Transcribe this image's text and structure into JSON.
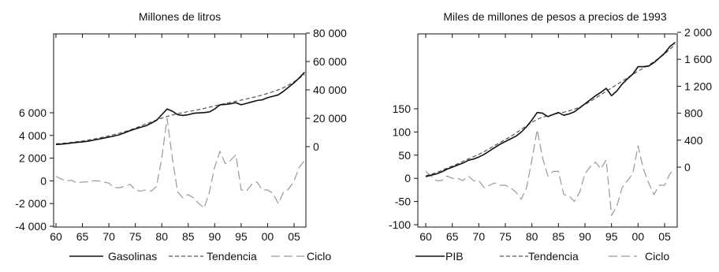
{
  "chart_data": [
    {
      "type": "line",
      "title": "Millones de litros",
      "x": [
        1960,
        1961,
        1962,
        1963,
        1964,
        1965,
        1966,
        1967,
        1968,
        1969,
        1970,
        1971,
        1972,
        1973,
        1974,
        1975,
        1976,
        1977,
        1978,
        1979,
        1980,
        1981,
        1982,
        1983,
        1984,
        1985,
        1986,
        1987,
        1988,
        1989,
        1990,
        1991,
        1992,
        1993,
        1994,
        1995,
        1996,
        1997,
        1998,
        1999,
        2000,
        2001,
        2002,
        2003,
        2004,
        2005,
        2006,
        2007
      ],
      "x_ticks": [
        {
          "value": 1960,
          "label": "60"
        },
        {
          "value": 1965,
          "label": "65"
        },
        {
          "value": 1970,
          "label": "70"
        },
        {
          "value": 1975,
          "label": "75"
        },
        {
          "value": 1980,
          "label": "80"
        },
        {
          "value": 1985,
          "label": "85"
        },
        {
          "value": 1990,
          "label": "90"
        },
        {
          "value": 1995,
          "label": "95"
        },
        {
          "value": 2000,
          "label": "00"
        },
        {
          "value": 2005,
          "label": "05"
        }
      ],
      "xlim": [
        1960,
        2008
      ],
      "left_axis": {
        "ylim": [
          -4000,
          14470
        ],
        "ticks": [
          {
            "value": -4000,
            "label": "-4 000"
          },
          {
            "value": -2000,
            "label": "-2 000"
          },
          {
            "value": 0,
            "label": "0"
          },
          {
            "value": 2000,
            "label": "2 000"
          },
          {
            "value": 4000,
            "label": "4 000"
          },
          {
            "value": 6000,
            "label": "6 000"
          }
        ]
      },
      "right_axis": {
        "ylim": [
          -23680,
          80000
        ],
        "ticks": [
          {
            "value": 0,
            "label": "0"
          },
          {
            "value": 20000,
            "label": "20 000"
          },
          {
            "value": 40000,
            "label": "40 000"
          },
          {
            "value": 60000,
            "label": "60 000"
          },
          {
            "value": 80000,
            "label": "80 000"
          }
        ]
      },
      "series": [
        {
          "name": "Gasolinas",
          "axis": "right",
          "style": "solid",
          "color": "#111111",
          "values": [
            1500,
            1800,
            2100,
            2600,
            3000,
            3400,
            3800,
            4500,
            5200,
            6000,
            6700,
            7500,
            8400,
            9800,
            11200,
            12500,
            13600,
            14700,
            16500,
            18500,
            22500,
            26500,
            25000,
            22500,
            22000,
            22500,
            23500,
            23800,
            24000,
            24500,
            26500,
            29500,
            29800,
            30200,
            31000,
            29500,
            30500,
            31500,
            32500,
            33000,
            34500,
            35500,
            36500,
            39000,
            42000,
            45000,
            48500,
            52500
          ]
        },
        {
          "name": "Tendencia",
          "axis": "right",
          "style": "dash",
          "color": "#555555",
          "values": [
            2000,
            2300,
            2600,
            3000,
            3500,
            4000,
            4600,
            5300,
            6000,
            6800,
            7600,
            8500,
            9500,
            10600,
            11800,
            13100,
            14500,
            16000,
            17400,
            18800,
            20100,
            21300,
            22300,
            23200,
            24000,
            24700,
            25400,
            26100,
            26900,
            27800,
            28700,
            29600,
            30400,
            31200,
            32000,
            32800,
            33600,
            34500,
            35400,
            36400,
            37500,
            38700,
            40000,
            41500,
            43500,
            45700,
            48200,
            51000
          ]
        },
        {
          "name": "Ciclo",
          "axis": "left",
          "style": "longdash",
          "color": "#999999",
          "values": [
            400,
            150,
            0,
            50,
            -200,
            -100,
            -100,
            0,
            0,
            -100,
            -200,
            -600,
            -600,
            -500,
            -300,
            -800,
            -900,
            -800,
            -900,
            -500,
            2000,
            5500,
            2000,
            -1000,
            -1500,
            -1200,
            -1500,
            -2000,
            -2400,
            -1000,
            1200,
            2600,
            1500,
            1800,
            2300,
            -800,
            -900,
            -300,
            -100,
            -800,
            -800,
            -1100,
            -2000,
            -1000,
            -700,
            0,
            1200,
            1800
          ]
        }
      ],
      "legend": {
        "placement": "bottom",
        "items": [
          "Gasolinas",
          "Tendencia",
          "Ciclo"
        ]
      }
    },
    {
      "type": "line",
      "title": "Miles de millones de pesos a precios de 1993",
      "x": [
        1960,
        1961,
        1962,
        1963,
        1964,
        1965,
        1966,
        1967,
        1968,
        1969,
        1970,
        1971,
        1972,
        1973,
        1974,
        1975,
        1976,
        1977,
        1978,
        1979,
        1980,
        1981,
        1982,
        1983,
        1984,
        1985,
        1986,
        1987,
        1988,
        1989,
        1990,
        1991,
        1992,
        1993,
        1994,
        1995,
        1996,
        1997,
        1998,
        1999,
        2000,
        2001,
        2002,
        2003,
        2004,
        2005,
        2006,
        2007
      ],
      "x_ticks": [
        {
          "value": 1960,
          "label": "60"
        },
        {
          "value": 1965,
          "label": "65"
        },
        {
          "value": 1970,
          "label": "70"
        },
        {
          "value": 1975,
          "label": "75"
        },
        {
          "value": 1980,
          "label": "80"
        },
        {
          "value": 1985,
          "label": "85"
        },
        {
          "value": 1990,
          "label": "90"
        },
        {
          "value": 1995,
          "label": "95"
        },
        {
          "value": 2000,
          "label": "00"
        },
        {
          "value": 2005,
          "label": "05"
        }
      ],
      "xlim": [
        1960,
        2008
      ],
      "left_axis": {
        "ylim": [
          -100,
          235
        ],
        "ticks": [
          {
            "value": -100,
            "label": "-100"
          },
          {
            "value": -50,
            "label": "-50"
          },
          {
            "value": 0,
            "label": "0"
          },
          {
            "value": 50,
            "label": "50"
          },
          {
            "value": 100,
            "label": "100"
          },
          {
            "value": 150,
            "label": "150"
          }
        ]
      },
      "right_axis": {
        "ylim": [
          -640,
          2000
        ],
        "ticks": [
          {
            "value": 0,
            "label": "0"
          },
          {
            "value": 400,
            "label": "400"
          },
          {
            "value": 800,
            "label": "800"
          },
          {
            "value": 1200,
            "label": "1 200"
          },
          {
            "value": 1600,
            "label": "1 600"
          },
          {
            "value": 2000,
            "label": "2 000"
          }
        ]
      },
      "series": [
        {
          "name": "PIB",
          "axis": "right",
          "style": "solid",
          "color": "#111111",
          "values": [
            -140,
            -120,
            -100,
            -70,
            -30,
            0,
            30,
            60,
            100,
            120,
            150,
            190,
            240,
            290,
            340,
            380,
            420,
            460,
            520,
            600,
            700,
            810,
            800,
            750,
            780,
            810,
            770,
            790,
            820,
            880,
            940,
            1000,
            1060,
            1110,
            1170,
            1060,
            1130,
            1230,
            1310,
            1380,
            1490,
            1490,
            1500,
            1550,
            1620,
            1690,
            1790,
            1850
          ]
        },
        {
          "name": "Tendencia",
          "axis": "right",
          "style": "dash",
          "color": "#555555",
          "values": [
            -130,
            -105,
            -80,
            -50,
            -15,
            15,
            50,
            85,
            120,
            155,
            190,
            230,
            275,
            320,
            365,
            410,
            455,
            505,
            560,
            615,
            665,
            710,
            740,
            760,
            780,
            800,
            815,
            835,
            860,
            890,
            930,
            975,
            1025,
            1075,
            1125,
            1175,
            1225,
            1275,
            1325,
            1375,
            1425,
            1470,
            1515,
            1565,
            1620,
            1680,
            1750,
            1820
          ]
        },
        {
          "name": "Ciclo",
          "axis": "left",
          "style": "longdash",
          "color": "#999999",
          "values": [
            15,
            5,
            -5,
            -5,
            5,
            0,
            0,
            -5,
            5,
            -5,
            -5,
            -20,
            -15,
            -10,
            -15,
            -15,
            -20,
            -30,
            -45,
            -20,
            40,
            105,
            45,
            5,
            15,
            15,
            -35,
            -38,
            -50,
            -30,
            10,
            25,
            35,
            20,
            40,
            -80,
            -60,
            -20,
            -5,
            10,
            70,
            20,
            -10,
            -35,
            -15,
            -15,
            10,
            20
          ]
        }
      ],
      "legend": {
        "placement": "bottom",
        "items": [
          "PIB",
          "Tendencia",
          "Ciclo"
        ]
      }
    }
  ]
}
